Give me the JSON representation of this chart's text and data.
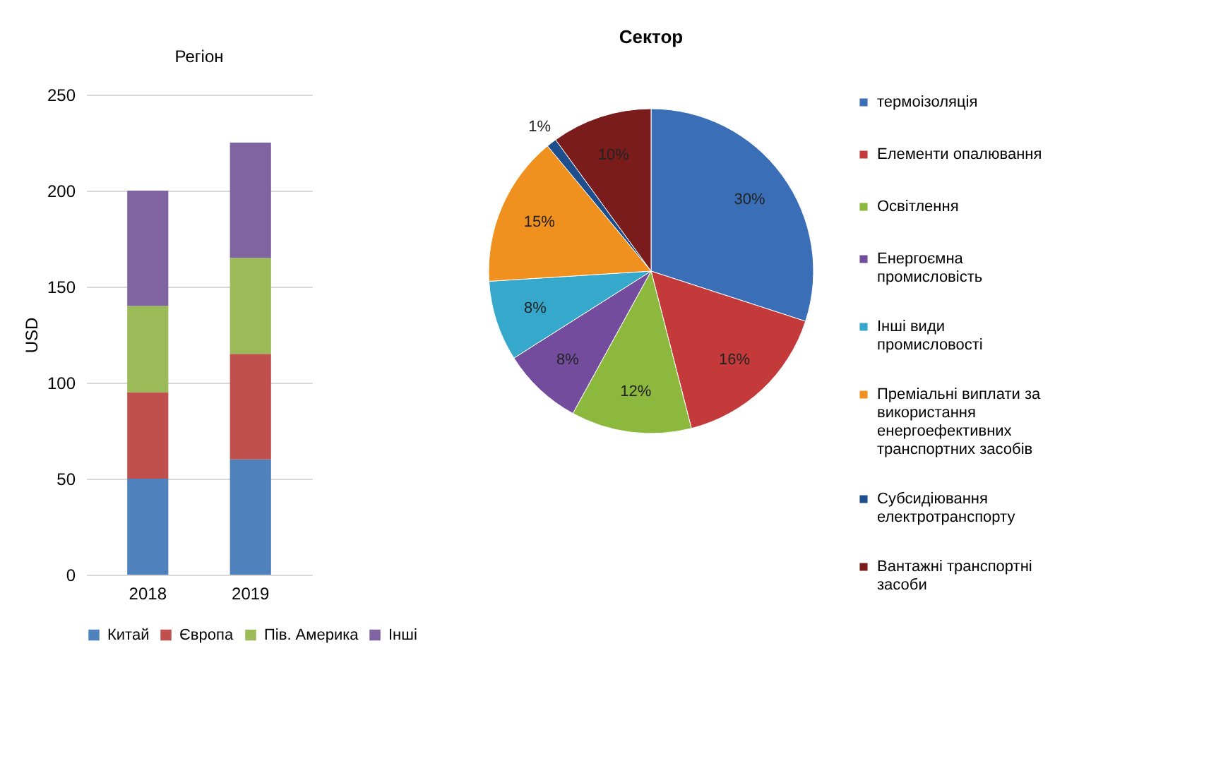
{
  "chart_data": [
    {
      "type": "bar",
      "title": "Регіон",
      "ylabel": "USD",
      "categories": [
        "2018",
        "2019"
      ],
      "stacked": true,
      "ylim": [
        0,
        250
      ],
      "yticks": [
        0,
        50,
        100,
        150,
        200,
        250
      ],
      "grid": "y",
      "legend": "bottom",
      "series": [
        {
          "name": "Китай",
          "color": "#4f81bd",
          "values": [
            50,
            60
          ]
        },
        {
          "name": "Європа",
          "color": "#c0504d",
          "values": [
            45,
            55
          ]
        },
        {
          "name": "Пів. Америка",
          "color": "#9bbb59",
          "values": [
            45,
            50
          ]
        },
        {
          "name": "Інші",
          "color": "#8064a2",
          "values": [
            60,
            60
          ]
        }
      ]
    },
    {
      "type": "pie",
      "title": "Сектор",
      "legend": "right",
      "categories": [
        "термоізоляція",
        "Елементи опалювання",
        "Освітлення",
        "Енергоємна промисловість",
        "Інші види промисловості",
        "Преміальні виплати за використання енергоефективних транспортних засобів",
        "Субсидіювання електротранспорту",
        "Вантажні транспортні засоби"
      ],
      "values": [
        30,
        16,
        12,
        8,
        8,
        15,
        1,
        10
      ],
      "value_labels": [
        "30%",
        "16%",
        "12%",
        "8%",
        "8%",
        "15%",
        "1%",
        "10%"
      ],
      "colors": [
        "#3a6fb7",
        "#c43a3a",
        "#8db83e",
        "#744c9e",
        "#35a8cc",
        "#f0901e",
        "#1f4e8c",
        "#7a1c1c"
      ]
    }
  ]
}
